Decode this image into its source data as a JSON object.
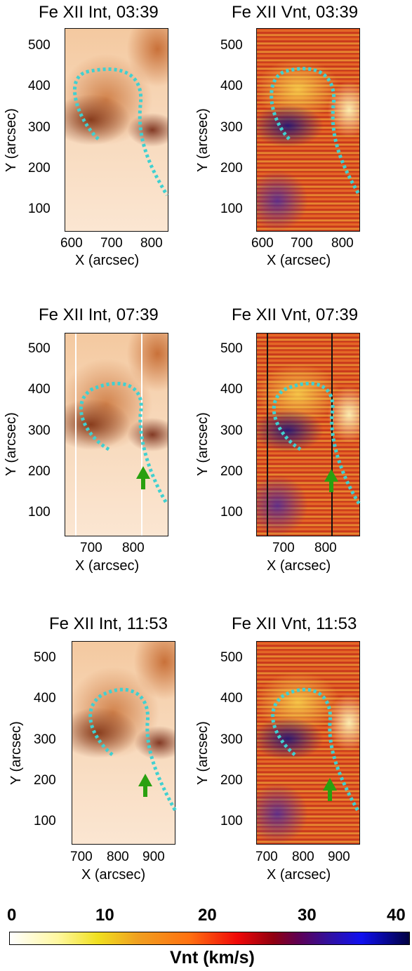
{
  "panels": [
    {
      "title": "Fe XII Int, 03:39",
      "kind": "int",
      "xticks": [
        "600",
        "700",
        "800"
      ],
      "yticks": [
        "500",
        "400",
        "300",
        "200",
        "100"
      ],
      "xlabel": "X (arcsec)",
      "ylabel": "Y (arcsec)"
    },
    {
      "title": "Fe XII Vnt, 03:39",
      "kind": "vnt",
      "xticks": [
        "600",
        "700",
        "800"
      ],
      "yticks": [
        "500",
        "400",
        "300",
        "200",
        "100"
      ],
      "xlabel": "X (arcsec)",
      "ylabel": "Y (arcsec)"
    },
    {
      "title": "Fe XII Int, 07:39",
      "kind": "int",
      "xticks": [
        "700",
        "800"
      ],
      "yticks": [
        "500",
        "400",
        "300",
        "200",
        "100"
      ],
      "xlabel": "X (arcsec)",
      "ylabel": "Y (arcsec)"
    },
    {
      "title": "Fe XII Vnt, 07:39",
      "kind": "vnt",
      "xticks": [
        "700",
        "800"
      ],
      "yticks": [
        "500",
        "400",
        "300",
        "200",
        "100"
      ],
      "xlabel": "X (arcsec)",
      "ylabel": "Y (arcsec)"
    },
    {
      "title": "Fe XII Int, 11:53",
      "kind": "int",
      "xticks": [
        "700",
        "800",
        "900"
      ],
      "yticks": [
        "500",
        "400",
        "300",
        "200",
        "100"
      ],
      "xlabel": "X (arcsec)",
      "ylabel": "Y (arcsec)"
    },
    {
      "title": "Fe XII Vnt, 11:53",
      "kind": "vnt",
      "xticks": [
        "700",
        "800",
        "900"
      ],
      "yticks": [
        "500",
        "400",
        "300",
        "200",
        "100"
      ],
      "xlabel": "X (arcsec)",
      "ylabel": "Y (arcsec)"
    }
  ],
  "colorbar": {
    "ticks": [
      "0",
      "10",
      "20",
      "30",
      "40"
    ],
    "label": "Vnt (km/s)"
  },
  "colors": {
    "loop": "#40d0d0",
    "arrow": "#2aa010"
  }
}
